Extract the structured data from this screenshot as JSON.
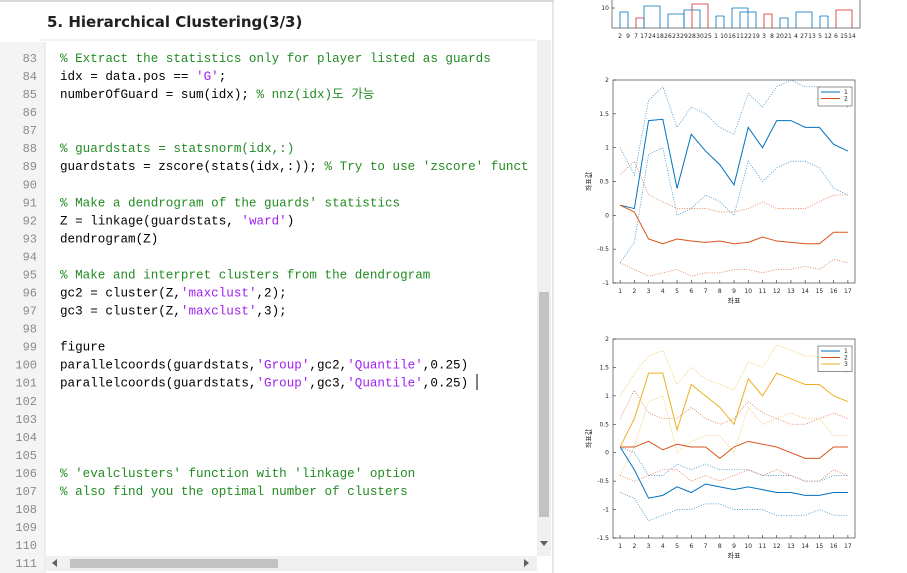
{
  "editor": {
    "title": "5. Hierarchical Clustering(3/3)",
    "lines": [
      {
        "number": 83,
        "segments": [
          {
            "text": "% Extract the statistics only for player listed as guards",
            "kind": "comment"
          }
        ]
      },
      {
        "number": 84,
        "segments": [
          {
            "text": "idx = data.pos == ",
            "kind": "code"
          },
          {
            "text": "'G'",
            "kind": "string"
          },
          {
            "text": ";",
            "kind": "code"
          }
        ]
      },
      {
        "number": 85,
        "segments": [
          {
            "text": "numberOfGuard = sum(idx); ",
            "kind": "code"
          },
          {
            "text": "% nnz(idx)도 가능",
            "kind": "comment"
          }
        ]
      },
      {
        "number": 86,
        "segments": []
      },
      {
        "number": 87,
        "segments": []
      },
      {
        "number": 88,
        "segments": [
          {
            "text": "% guardstats = statsnorm(idx,:)",
            "kind": "comment"
          }
        ]
      },
      {
        "number": 89,
        "segments": [
          {
            "text": "guardstats = zscore(stats(idx,:)); ",
            "kind": "code"
          },
          {
            "text": "% Try to use 'zscore' funct",
            "kind": "comment"
          }
        ]
      },
      {
        "number": 90,
        "segments": []
      },
      {
        "number": 91,
        "segments": [
          {
            "text": "% Make a dendrogram of the guards' statistics",
            "kind": "comment"
          }
        ]
      },
      {
        "number": 92,
        "segments": [
          {
            "text": "Z = linkage(guardstats, ",
            "kind": "code"
          },
          {
            "text": "'ward'",
            "kind": "string"
          },
          {
            "text": ")",
            "kind": "code"
          }
        ]
      },
      {
        "number": 93,
        "segments": [
          {
            "text": "dendrogram(Z)",
            "kind": "code"
          }
        ]
      },
      {
        "number": 94,
        "segments": []
      },
      {
        "number": 95,
        "segments": [
          {
            "text": "% Make and interpret clusters from the dendrogram",
            "kind": "comment"
          }
        ]
      },
      {
        "number": 96,
        "segments": [
          {
            "text": "gc2 = cluster(Z,",
            "kind": "code"
          },
          {
            "text": "'maxclust'",
            "kind": "string"
          },
          {
            "text": ",2);",
            "kind": "code"
          }
        ]
      },
      {
        "number": 97,
        "segments": [
          {
            "text": "gc3 = cluster(Z,",
            "kind": "code"
          },
          {
            "text": "'maxclust'",
            "kind": "string"
          },
          {
            "text": ",3);",
            "kind": "code"
          }
        ]
      },
      {
        "number": 98,
        "segments": []
      },
      {
        "number": 99,
        "segments": [
          {
            "text": "figure",
            "kind": "code"
          }
        ]
      },
      {
        "number": 100,
        "segments": [
          {
            "text": "parallelcoords(guardstats,",
            "kind": "code"
          },
          {
            "text": "'Group'",
            "kind": "string"
          },
          {
            "text": ",gc2,",
            "kind": "code"
          },
          {
            "text": "'Quantile'",
            "kind": "string"
          },
          {
            "text": ",0.25)",
            "kind": "code"
          }
        ]
      },
      {
        "number": 101,
        "segments": [
          {
            "text": "parallelcoords(guardstats,",
            "kind": "code"
          },
          {
            "text": "'Group'",
            "kind": "string"
          },
          {
            "text": ",gc3,",
            "kind": "code"
          },
          {
            "text": "'Quantile'",
            "kind": "string"
          },
          {
            "text": ",0.25)",
            "kind": "code"
          }
        ]
      },
      {
        "number": 102,
        "segments": []
      },
      {
        "number": 103,
        "segments": []
      },
      {
        "number": 104,
        "segments": []
      },
      {
        "number": 105,
        "segments": []
      },
      {
        "number": 106,
        "segments": [
          {
            "text": "% 'evalclusters' function with 'linkage' option",
            "kind": "comment"
          }
        ]
      },
      {
        "number": 107,
        "segments": [
          {
            "text": "% also find you the optimal number of clusters",
            "kind": "comment"
          }
        ]
      },
      {
        "number": 108,
        "segments": []
      },
      {
        "number": 109,
        "segments": []
      },
      {
        "number": 110,
        "segments": []
      },
      {
        "number": 111,
        "segments": []
      }
    ]
  },
  "chart_data": [
    {
      "type": "dendrogram",
      "yticks": [
        10
      ],
      "categories": [
        2,
        9,
        7,
        17,
        24,
        18,
        26,
        23,
        29,
        28,
        30,
        25,
        1,
        10,
        16,
        11,
        22,
        19,
        3,
        8,
        20,
        21,
        4,
        27,
        13,
        5,
        12,
        6,
        15,
        14
      ]
    },
    {
      "type": "line",
      "xlabel": "좌표",
      "ylabel": "좌표값",
      "legend": "upper right",
      "xlim": [
        0.5,
        17.5
      ],
      "ylim": [
        -1,
        2
      ],
      "xticks": [
        1,
        2,
        3,
        4,
        5,
        6,
        7,
        8,
        9,
        10,
        11,
        12,
        13,
        14,
        15,
        16,
        17
      ],
      "yticks": [
        -1,
        -0.5,
        0,
        0.5,
        1,
        1.5,
        2
      ],
      "series": [
        {
          "name": "1",
          "color": "#0072bd",
          "values": [
            0.15,
            0.1,
            1.4,
            1.42,
            0.4,
            1.2,
            0.95,
            0.75,
            0.45,
            1.3,
            1.0,
            1.4,
            1.4,
            1.3,
            1.3,
            1.05,
            0.95
          ],
          "upper": [
            1.0,
            0.6,
            1.7,
            1.9,
            1.3,
            1.6,
            1.5,
            1.3,
            1.2,
            1.8,
            1.6,
            1.9,
            2.0,
            1.9,
            1.9,
            1.7,
            1.6
          ],
          "lower": [
            -0.7,
            -0.4,
            0.9,
            1.0,
            0.0,
            0.1,
            0.3,
            0.2,
            0.0,
            0.8,
            0.5,
            0.7,
            0.8,
            0.8,
            0.7,
            0.4,
            0.3
          ]
        },
        {
          "name": "2",
          "color": "#d95319",
          "values": [
            0.15,
            0.05,
            -0.35,
            -0.42,
            -0.35,
            -0.38,
            -0.4,
            -0.38,
            -0.42,
            -0.4,
            -0.32,
            -0.38,
            -0.4,
            -0.42,
            -0.42,
            -0.25,
            -0.25
          ],
          "upper": [
            0.6,
            0.8,
            0.3,
            0.2,
            0.1,
            0.1,
            0.1,
            0.05,
            0.05,
            0.1,
            0.2,
            0.1,
            0.1,
            0.1,
            0.2,
            0.3,
            0.3
          ],
          "lower": [
            -0.7,
            -0.8,
            -0.9,
            -0.85,
            -0.8,
            -0.9,
            -0.85,
            -0.85,
            -0.8,
            -0.8,
            -0.85,
            -0.8,
            -0.8,
            -0.75,
            -0.8,
            -0.65,
            -0.7
          ]
        }
      ]
    },
    {
      "type": "line",
      "xlabel": "좌표",
      "ylabel": "좌표값",
      "legend": "upper right",
      "xlim": [
        0.5,
        17.5
      ],
      "ylim": [
        -1.5,
        2
      ],
      "xticks": [
        1,
        2,
        3,
        4,
        5,
        6,
        7,
        8,
        9,
        10,
        11,
        12,
        13,
        14,
        15,
        16,
        17
      ],
      "yticks": [
        -1.5,
        -1,
        -0.5,
        0,
        0.5,
        1,
        1.5,
        2
      ],
      "series": [
        {
          "name": "1",
          "color": "#0072bd",
          "values": [
            0.1,
            -0.3,
            -0.8,
            -0.75,
            -0.6,
            -0.7,
            -0.55,
            -0.6,
            -0.65,
            -0.6,
            -0.65,
            -0.7,
            -0.7,
            -0.75,
            -0.75,
            -0.7,
            -0.7
          ],
          "upper": [
            0.1,
            0.0,
            -0.4,
            -0.4,
            -0.2,
            -0.3,
            -0.2,
            -0.3,
            -0.3,
            -0.3,
            -0.4,
            -0.4,
            -0.4,
            -0.5,
            -0.5,
            -0.4,
            -0.4
          ],
          "lower": [
            -0.7,
            -0.8,
            -1.2,
            -1.1,
            -1.0,
            -1.0,
            -0.9,
            -0.9,
            -1.0,
            -1.0,
            -1.0,
            -1.1,
            -1.1,
            -1.1,
            -1.0,
            -1.1,
            -1.1
          ]
        },
        {
          "name": "2",
          "color": "#d95319",
          "values": [
            0.1,
            0.1,
            0.2,
            0.05,
            0.15,
            0.1,
            0.1,
            -0.1,
            0.1,
            0.2,
            0.15,
            0.1,
            0,
            -0.1,
            -0.1,
            0.1,
            0.1
          ],
          "upper": [
            0.6,
            1.1,
            0.7,
            0.6,
            0.6,
            0.8,
            0.6,
            0.5,
            0.6,
            0.9,
            0.7,
            0.6,
            0.5,
            0.5,
            0.6,
            0.7,
            0.6
          ],
          "lower": [
            -0.4,
            -0.5,
            -0.4,
            -0.3,
            -0.3,
            -0.5,
            -0.4,
            -0.5,
            -0.4,
            -0.3,
            -0.4,
            -0.3,
            -0.4,
            -0.5,
            -0.5,
            -0.3,
            -0.4
          ]
        },
        {
          "name": "3",
          "color": "#edb120",
          "values": [
            0.1,
            0.6,
            1.4,
            1.4,
            0.4,
            1.2,
            1.0,
            0.8,
            0.5,
            1.3,
            1.0,
            1.4,
            1.3,
            1.2,
            1.2,
            1.0,
            0.9
          ],
          "upper": [
            1.0,
            1.4,
            1.7,
            1.8,
            1.2,
            1.5,
            1.3,
            1.2,
            1.1,
            1.6,
            1.5,
            1.9,
            1.8,
            1.7,
            1.7,
            1.5,
            1.4
          ],
          "lower": [
            -0.4,
            0.1,
            0.9,
            1.0,
            0.0,
            0.2,
            0.3,
            0.3,
            0.0,
            0.8,
            0.5,
            0.6,
            0.7,
            0.6,
            0.6,
            0.3,
            0.3
          ]
        }
      ]
    }
  ]
}
